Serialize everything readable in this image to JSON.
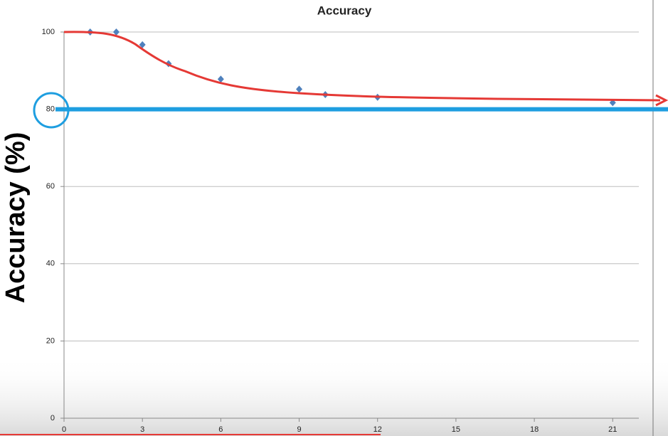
{
  "chart_data": {
    "type": "scatter",
    "title": "Accuracy",
    "y_label": "Accuracy (%)",
    "x": [
      1,
      2,
      3,
      4,
      6,
      9,
      10,
      12,
      21
    ],
    "series": [
      {
        "name": "Accuracy",
        "color": "#4f81bd",
        "values": [
          100,
          100,
          96.7,
          91.8,
          87.8,
          85.2,
          83.8,
          83.1,
          81.7
        ]
      }
    ],
    "xlim": [
      0,
      22
    ],
    "xticks": [
      0,
      3,
      6,
      9,
      12,
      15,
      18,
      21
    ],
    "ylim": [
      0,
      100
    ],
    "yticks": [
      0,
      20,
      40,
      60,
      80,
      100
    ],
    "grid": true,
    "reference_line": {
      "value": 80,
      "color": "#1e9ee0"
    }
  }
}
